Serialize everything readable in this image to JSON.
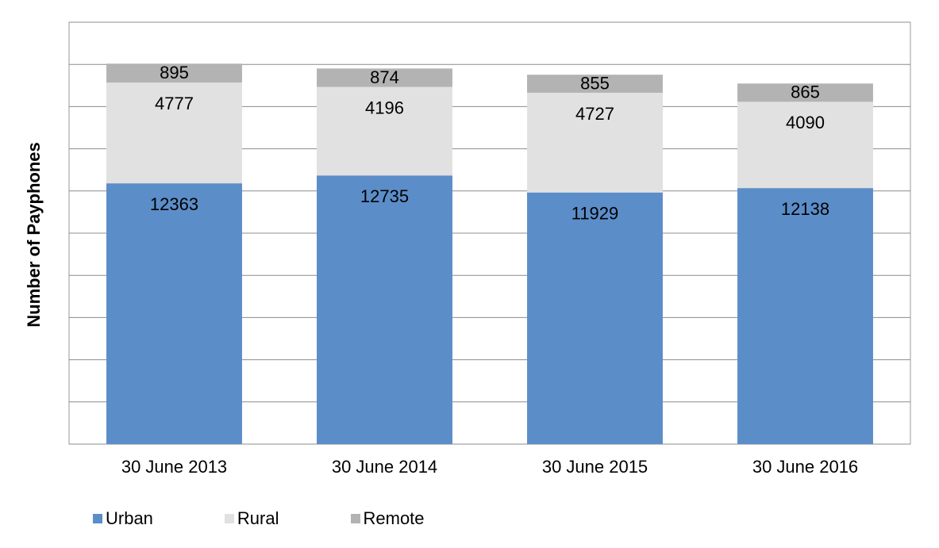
{
  "chart_data": {
    "type": "bar",
    "stacked": true,
    "title": "",
    "xlabel": "",
    "ylabel": "Number of Payphones",
    "categories": [
      "30 June 2013",
      "30 June 2014",
      "30 June 2015",
      "30 June 2016"
    ],
    "series": [
      {
        "name": "Urban",
        "color": "#5B8DC9",
        "values": [
          12363,
          12735,
          11929,
          12138
        ]
      },
      {
        "name": "Rural",
        "color": "#E1E1E1",
        "values": [
          4777,
          4196,
          4727,
          4090
        ]
      },
      {
        "name": "Remote",
        "color": "#B3B3B3",
        "values": [
          895,
          874,
          855,
          865
        ]
      }
    ],
    "ylim": [
      0,
      20000
    ],
    "y_gridline_step": 2000,
    "y_tick_labels_shown": false,
    "grid": true,
    "data_labels": true,
    "legend_position": "bottom-left"
  }
}
